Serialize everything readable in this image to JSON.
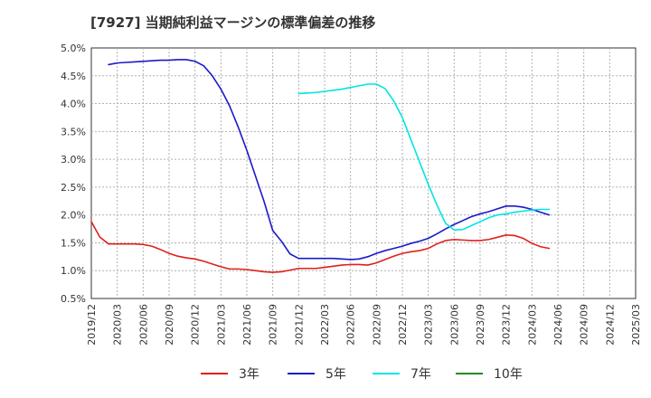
{
  "chart_data": {
    "type": "line",
    "title": "[7927]  当期純利益マージンの標準偏差の推移",
    "xlabel": "",
    "ylabel": "",
    "ylim": [
      0.5,
      5.0
    ],
    "y_ticks": [
      "0.5%",
      "1.0%",
      "1.5%",
      "2.0%",
      "2.5%",
      "3.0%",
      "3.5%",
      "4.0%",
      "4.5%",
      "5.0%"
    ],
    "x_ticks": [
      "2019/12",
      "2020/03",
      "2020/06",
      "2020/09",
      "2020/12",
      "2021/03",
      "2021/06",
      "2021/09",
      "2021/12",
      "2022/03",
      "2022/06",
      "2022/09",
      "2022/12",
      "2023/03",
      "2023/06",
      "2023/09",
      "2023/12",
      "2024/03",
      "2024/06",
      "2024/09",
      "2024/12",
      "2025/03"
    ],
    "grid": true,
    "legend_position": "bottom",
    "series": [
      {
        "name": "3年",
        "color": "#e0201b",
        "values": [
          1.88,
          1.6,
          1.48,
          1.48,
          1.48,
          1.48,
          1.47,
          1.44,
          1.38,
          1.31,
          1.26,
          1.23,
          1.21,
          1.17,
          1.12,
          1.07,
          1.03,
          1.03,
          1.02,
          1.0,
          0.98,
          0.97,
          0.98,
          1.01,
          1.04,
          1.04,
          1.04,
          1.06,
          1.08,
          1.1,
          1.11,
          1.11,
          1.1,
          1.14,
          1.2,
          1.26,
          1.31,
          1.34,
          1.36,
          1.4,
          1.48,
          1.54,
          1.56,
          1.55,
          1.54,
          1.54,
          1.56,
          1.6,
          1.64,
          1.63,
          1.58,
          1.49,
          1.43,
          1.4
        ]
      },
      {
        "name": "5年",
        "color": "#1a1ac8",
        "values": [
          null,
          null,
          4.7,
          4.73,
          4.74,
          4.75,
          4.76,
          4.77,
          4.78,
          4.78,
          4.79,
          4.79,
          4.76,
          4.68,
          4.5,
          4.26,
          3.96,
          3.58,
          3.16,
          2.7,
          2.24,
          1.72,
          1.53,
          1.3,
          1.22,
          1.22,
          1.22,
          1.22,
          1.22,
          1.21,
          1.2,
          1.21,
          1.25,
          1.31,
          1.36,
          1.4,
          1.44,
          1.49,
          1.53,
          1.58,
          1.66,
          1.75,
          1.83,
          1.9,
          1.97,
          2.02,
          2.06,
          2.11,
          2.16,
          2.16,
          2.14,
          2.1,
          2.05,
          2.0
        ]
      },
      {
        "name": "7年",
        "color": "#00e5e5",
        "values": [
          null,
          null,
          null,
          null,
          null,
          null,
          null,
          null,
          null,
          null,
          null,
          null,
          null,
          null,
          null,
          null,
          null,
          null,
          null,
          null,
          null,
          null,
          null,
          null,
          4.18,
          4.19,
          4.2,
          4.22,
          4.24,
          4.26,
          4.29,
          4.32,
          4.35,
          4.35,
          4.27,
          4.05,
          3.75,
          3.35,
          2.95,
          2.55,
          2.18,
          1.85,
          1.73,
          1.74,
          1.81,
          1.88,
          1.95,
          2.0,
          2.02,
          2.05,
          2.07,
          2.09,
          2.1,
          2.1
        ]
      },
      {
        "name": "10年",
        "color": "#228b22",
        "values": []
      }
    ]
  }
}
